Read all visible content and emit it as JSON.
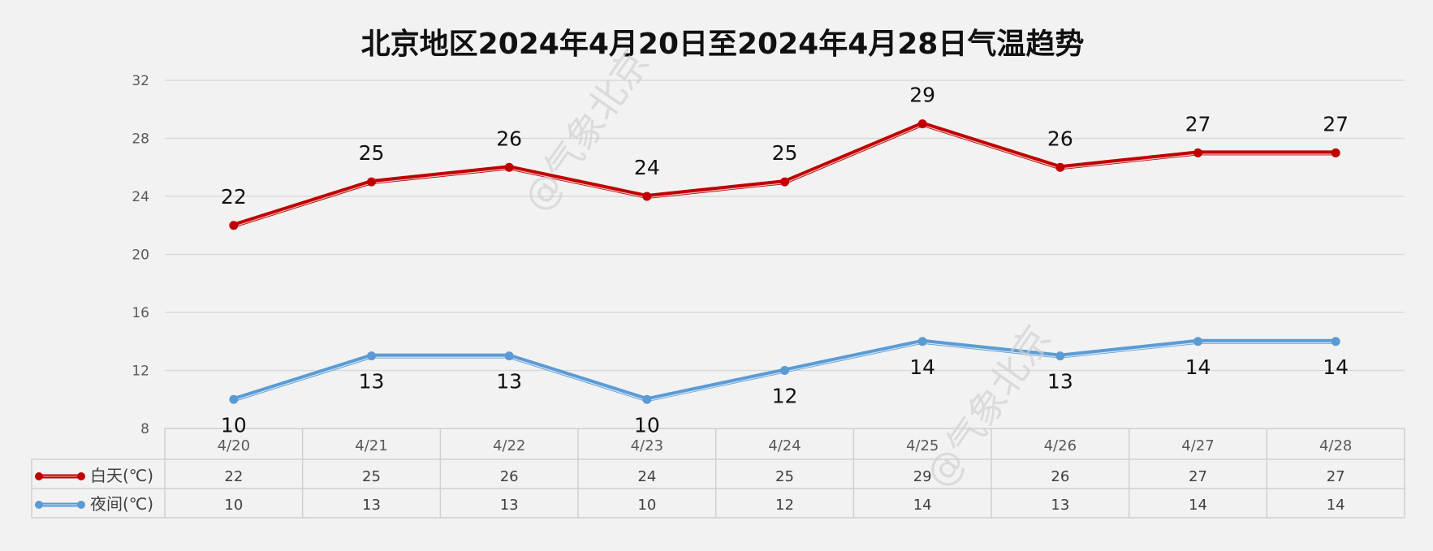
{
  "watermark": "@气象北京",
  "chart_data": {
    "type": "line",
    "title": "北京地区2024年4月20日至2024年4月28日气温趋势",
    "categories": [
      "4/20",
      "4/21",
      "4/22",
      "4/23",
      "4/24",
      "4/25",
      "4/26",
      "4/27",
      "4/28"
    ],
    "ylim": [
      8,
      32
    ],
    "yticks": [
      8,
      12,
      16,
      20,
      24,
      28,
      32
    ],
    "grid": true,
    "legend_placement": "data-table",
    "series": [
      {
        "name": "白天(℃)",
        "color": "#c00000",
        "values": [
          22,
          25,
          26,
          24,
          25,
          29,
          26,
          27,
          27
        ]
      },
      {
        "name": "夜间(℃)",
        "color": "#5b9bd5",
        "values": [
          10,
          13,
          13,
          10,
          12,
          14,
          13,
          14,
          14
        ]
      }
    ]
  }
}
